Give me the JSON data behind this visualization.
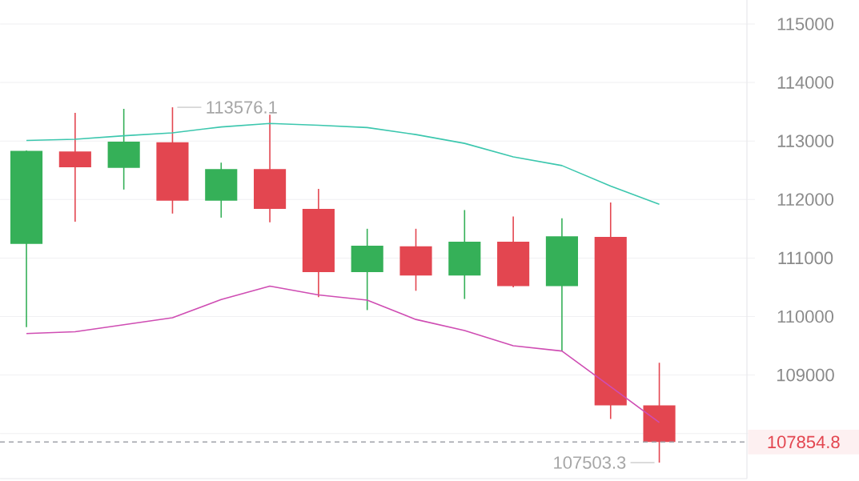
{
  "chart_data": {
    "type": "candlestick",
    "categories": [
      null,
      null,
      null,
      null,
      null,
      null,
      null,
      null,
      null,
      null,
      null,
      null,
      null,
      null
    ],
    "ohlc": [
      [
        111240,
        112840,
        109820,
        112830
      ],
      [
        112820,
        113480,
        111620,
        112550
      ],
      [
        112540,
        113550,
        112170,
        112990
      ],
      [
        112980,
        113576.1,
        111760,
        111980
      ],
      [
        111980,
        112630,
        111690,
        112520
      ],
      [
        112520,
        113450,
        111610,
        111840
      ],
      [
        111840,
        112180,
        110330,
        110760
      ],
      [
        110760,
        111500,
        110110,
        111210
      ],
      [
        111200,
        111500,
        110440,
        110700
      ],
      [
        110700,
        111820,
        110300,
        111280
      ],
      [
        111280,
        111710,
        110500,
        110520
      ],
      [
        110520,
        111680,
        109410,
        111370
      ],
      [
        111360,
        111950,
        108250,
        108480
      ],
      [
        108480,
        109210,
        107503.3,
        107854.8
      ]
    ],
    "colors": [
      "#35b058",
      "#e34650",
      "#35b058",
      "#e34650",
      "#35b058",
      "#e34650",
      "#e34650",
      "#35b058",
      "#e34650",
      "#35b058",
      "#e34650",
      "#35b058",
      "#e34650",
      "#e34650"
    ],
    "series": [
      {
        "type": "line",
        "color": "#3cc7ae",
        "values": [
          113010,
          113030,
          113090,
          113140,
          113240,
          113300,
          113270,
          113230,
          113110,
          112960,
          112730,
          112580,
          112230,
          111920
        ]
      },
      {
        "type": "line",
        "color": "#cf4db3",
        "values": [
          109710,
          109740,
          109860,
          109980,
          110290,
          110520,
          110370,
          110280,
          109950,
          109760,
          109500,
          109410,
          108800,
          108190
        ]
      }
    ],
    "ylim": [
      107230,
      115410
    ],
    "yticks": [
      {
        "value": 108000,
        "label": null
      },
      109000,
      110000,
      111000,
      112000,
      113000,
      114000,
      115000
    ],
    "tick_labels": "y",
    "grid": "y",
    "ref_lines": [
      {
        "axis": "y",
        "value": 107854.8,
        "label": "107854.8",
        "color": "#a0a3aa",
        "line_style": "dashed"
      }
    ],
    "annotations": [
      "113576.1",
      "107503.3"
    ]
  }
}
